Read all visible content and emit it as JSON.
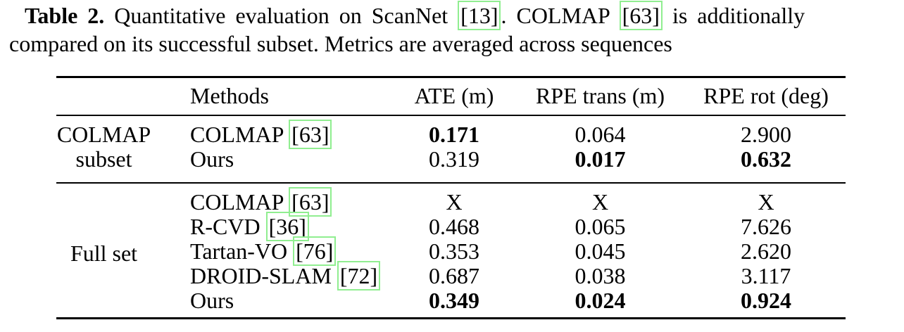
{
  "caption": {
    "label": "Table 2.",
    "part1": "Quantitative evaluation on ScanNet",
    "cite1": "[13]",
    "part2": ". COLMAP",
    "cite2": "[63]",
    "part3": "is additionally",
    "line2": "compared on its successful subset. Metrics are averaged across sequences"
  },
  "table": {
    "headers": [
      "",
      "Methods",
      "ATE (m)",
      "RPE trans (m)",
      "RPE rot (deg)"
    ],
    "sections": [
      {
        "group_lines": [
          "COLMAP",
          "subset"
        ],
        "rows": [
          {
            "method": "COLMAP",
            "cite": "[63]",
            "ate": "0.171",
            "rpe_trans": "0.064",
            "rpe_rot": "2.900",
            "bold": [
              "ate"
            ]
          },
          {
            "method": "Ours",
            "cite": "",
            "ate": "0.319",
            "rpe_trans": "0.017",
            "rpe_rot": "0.632",
            "bold": [
              "rpe_trans",
              "rpe_rot"
            ]
          }
        ]
      },
      {
        "group_lines": [
          "Full set"
        ],
        "rows": [
          {
            "method": "COLMAP",
            "cite": "[63]",
            "ate": "X",
            "rpe_trans": "X",
            "rpe_rot": "X",
            "bold": []
          },
          {
            "method": "R-CVD",
            "cite": "[36]",
            "ate": "0.468",
            "rpe_trans": "0.065",
            "rpe_rot": "7.626",
            "bold": []
          },
          {
            "method": "Tartan-VO",
            "cite": "[76]",
            "ate": "0.353",
            "rpe_trans": "0.045",
            "rpe_rot": "2.620",
            "bold": []
          },
          {
            "method": "DROID-SLAM",
            "cite": "[72]",
            "ate": "0.687",
            "rpe_trans": "0.038",
            "rpe_rot": "3.117",
            "bold": []
          },
          {
            "method": "Ours",
            "cite": "",
            "ate": "0.349",
            "rpe_trans": "0.024",
            "rpe_rot": "0.924",
            "bold": [
              "ate",
              "rpe_trans",
              "rpe_rot"
            ]
          }
        ]
      }
    ]
  },
  "colors": {
    "citation_box_green": "#90ee90",
    "text": "#000000",
    "background": "#ffffff"
  }
}
